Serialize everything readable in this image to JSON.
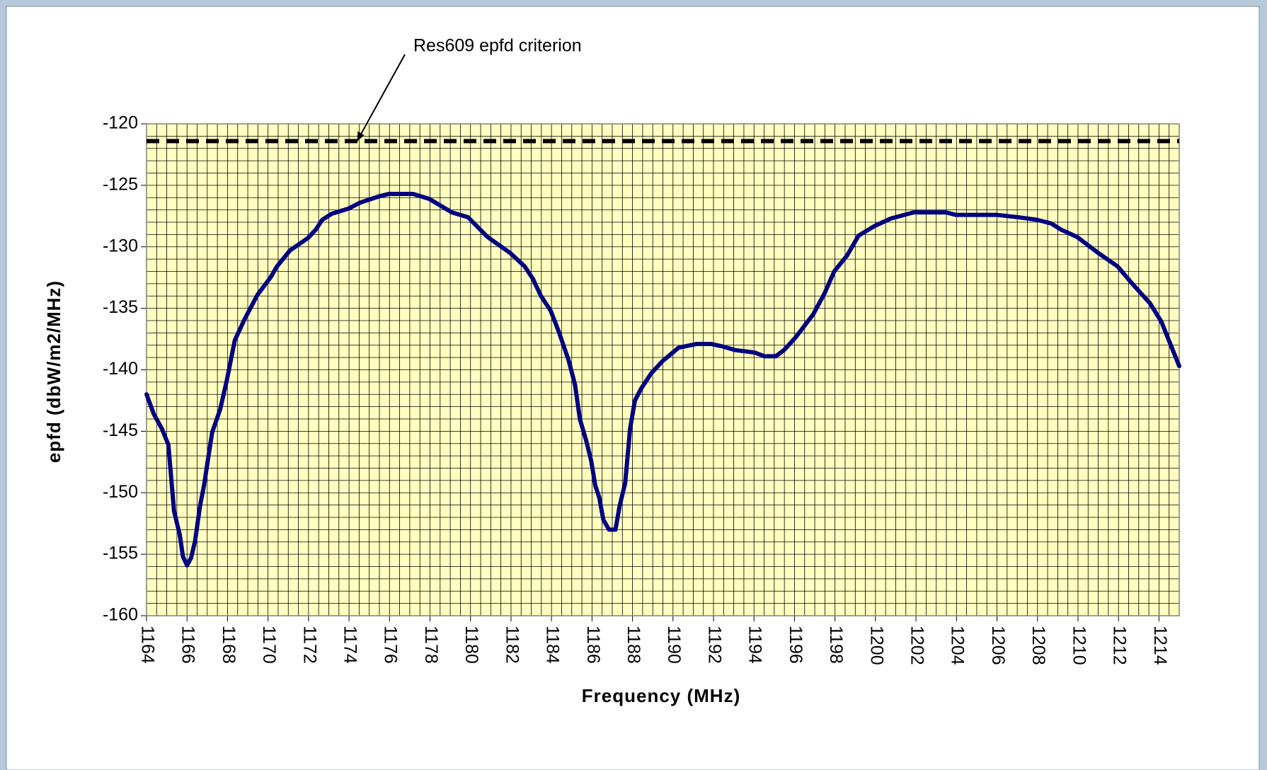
{
  "chart_data": {
    "type": "line",
    "x_label": "Frequency (MHz)",
    "y_label": "epfd (dbW/m2/MHz)",
    "x": [
      1164.0,
      1164.36,
      1164.76,
      1165.08,
      1165.36,
      1165.64,
      1165.8,
      1166.0,
      1166.2,
      1166.4,
      1166.64,
      1166.84,
      1167.24,
      1167.64,
      1167.96,
      1168.36,
      1168.84,
      1169.48,
      1170.12,
      1170.44,
      1171.08,
      1171.96,
      1172.36,
      1172.68,
      1173.16,
      1173.96,
      1174.56,
      1175.48,
      1175.96,
      1177.16,
      1177.96,
      1179.08,
      1179.88,
      1180.36,
      1180.84,
      1181.96,
      1182.68,
      1183.08,
      1183.48,
      1183.96,
      1184.36,
      1184.84,
      1185.16,
      1185.4,
      1185.72,
      1185.96,
      1186.16,
      1186.36,
      1186.56,
      1186.84,
      1187.16,
      1187.36,
      1187.64,
      1187.88,
      1188.12,
      1188.44,
      1188.92,
      1189.48,
      1190.28,
      1191.16,
      1191.88,
      1192.44,
      1193.08,
      1194.04,
      1194.52,
      1195.08,
      1195.48,
      1196.04,
      1196.92,
      1197.48,
      1197.96,
      1198.6,
      1199.16,
      1199.96,
      1200.76,
      1201.88,
      1203.48,
      1203.96,
      1205.96,
      1207.08,
      1207.96,
      1208.68,
      1209.16,
      1209.96,
      1211.0,
      1211.96,
      1212.68,
      1213.56,
      1214.12,
      1214.56,
      1215.0
    ],
    "series": [
      {
        "color": "#000080",
        "values": [
          -142.0,
          -143.6,
          -144.8,
          -146.1,
          -151.5,
          -153.4,
          -155.2,
          -155.9,
          -155.3,
          -153.9,
          -151.1,
          -149.4,
          -145.1,
          -143.2,
          -140.9,
          -137.6,
          -135.9,
          -133.9,
          -132.5,
          -131.6,
          -130.3,
          -129.3,
          -128.6,
          -127.8,
          -127.3,
          -126.9,
          -126.4,
          -125.9,
          -125.7,
          -125.7,
          -126.1,
          -127.2,
          -127.6,
          -128.4,
          -129.2,
          -130.5,
          -131.6,
          -132.6,
          -134.0,
          -135.2,
          -136.9,
          -139.2,
          -141.2,
          -144.0,
          -145.8,
          -147.4,
          -149.4,
          -150.4,
          -152.2,
          -153.0,
          -153.0,
          -151.1,
          -149.2,
          -144.8,
          -142.5,
          -141.5,
          -140.3,
          -139.3,
          -138.2,
          -137.9,
          -137.9,
          -138.1,
          -138.4,
          -138.6,
          -138.9,
          -138.9,
          -138.4,
          -137.4,
          -135.5,
          -133.8,
          -132.0,
          -130.7,
          -129.1,
          -128.3,
          -127.7,
          -127.2,
          -127.2,
          -127.4,
          -127.4,
          -127.6,
          -127.8,
          -128.1,
          -128.6,
          -129.2,
          -130.5,
          -131.6,
          -133.0,
          -134.6,
          -136.1,
          -137.9,
          -139.7
        ]
      }
    ],
    "reference_line": {
      "y": -121.4,
      "color": "#000000",
      "dashed": true
    },
    "annotation": {
      "text": "Res609 epfd criterion",
      "x": 1174.4,
      "y": -121.4
    },
    "xlim": [
      1164,
      1215
    ],
    "ylim": [
      -160,
      -120
    ],
    "xticks": [
      1164,
      1166,
      1168,
      1170,
      1172,
      1174,
      1176,
      1178,
      1180,
      1182,
      1184,
      1186,
      1188,
      1190,
      1192,
      1194,
      1196,
      1198,
      1200,
      1202,
      1204,
      1206,
      1208,
      1210,
      1212,
      1214
    ],
    "yticks": [
      -120,
      -125,
      -130,
      -135,
      -140,
      -145,
      -150,
      -155,
      -160
    ],
    "minor_grid": {
      "x": 0.5,
      "y": 1
    },
    "plot_background": "#ffffc0"
  }
}
